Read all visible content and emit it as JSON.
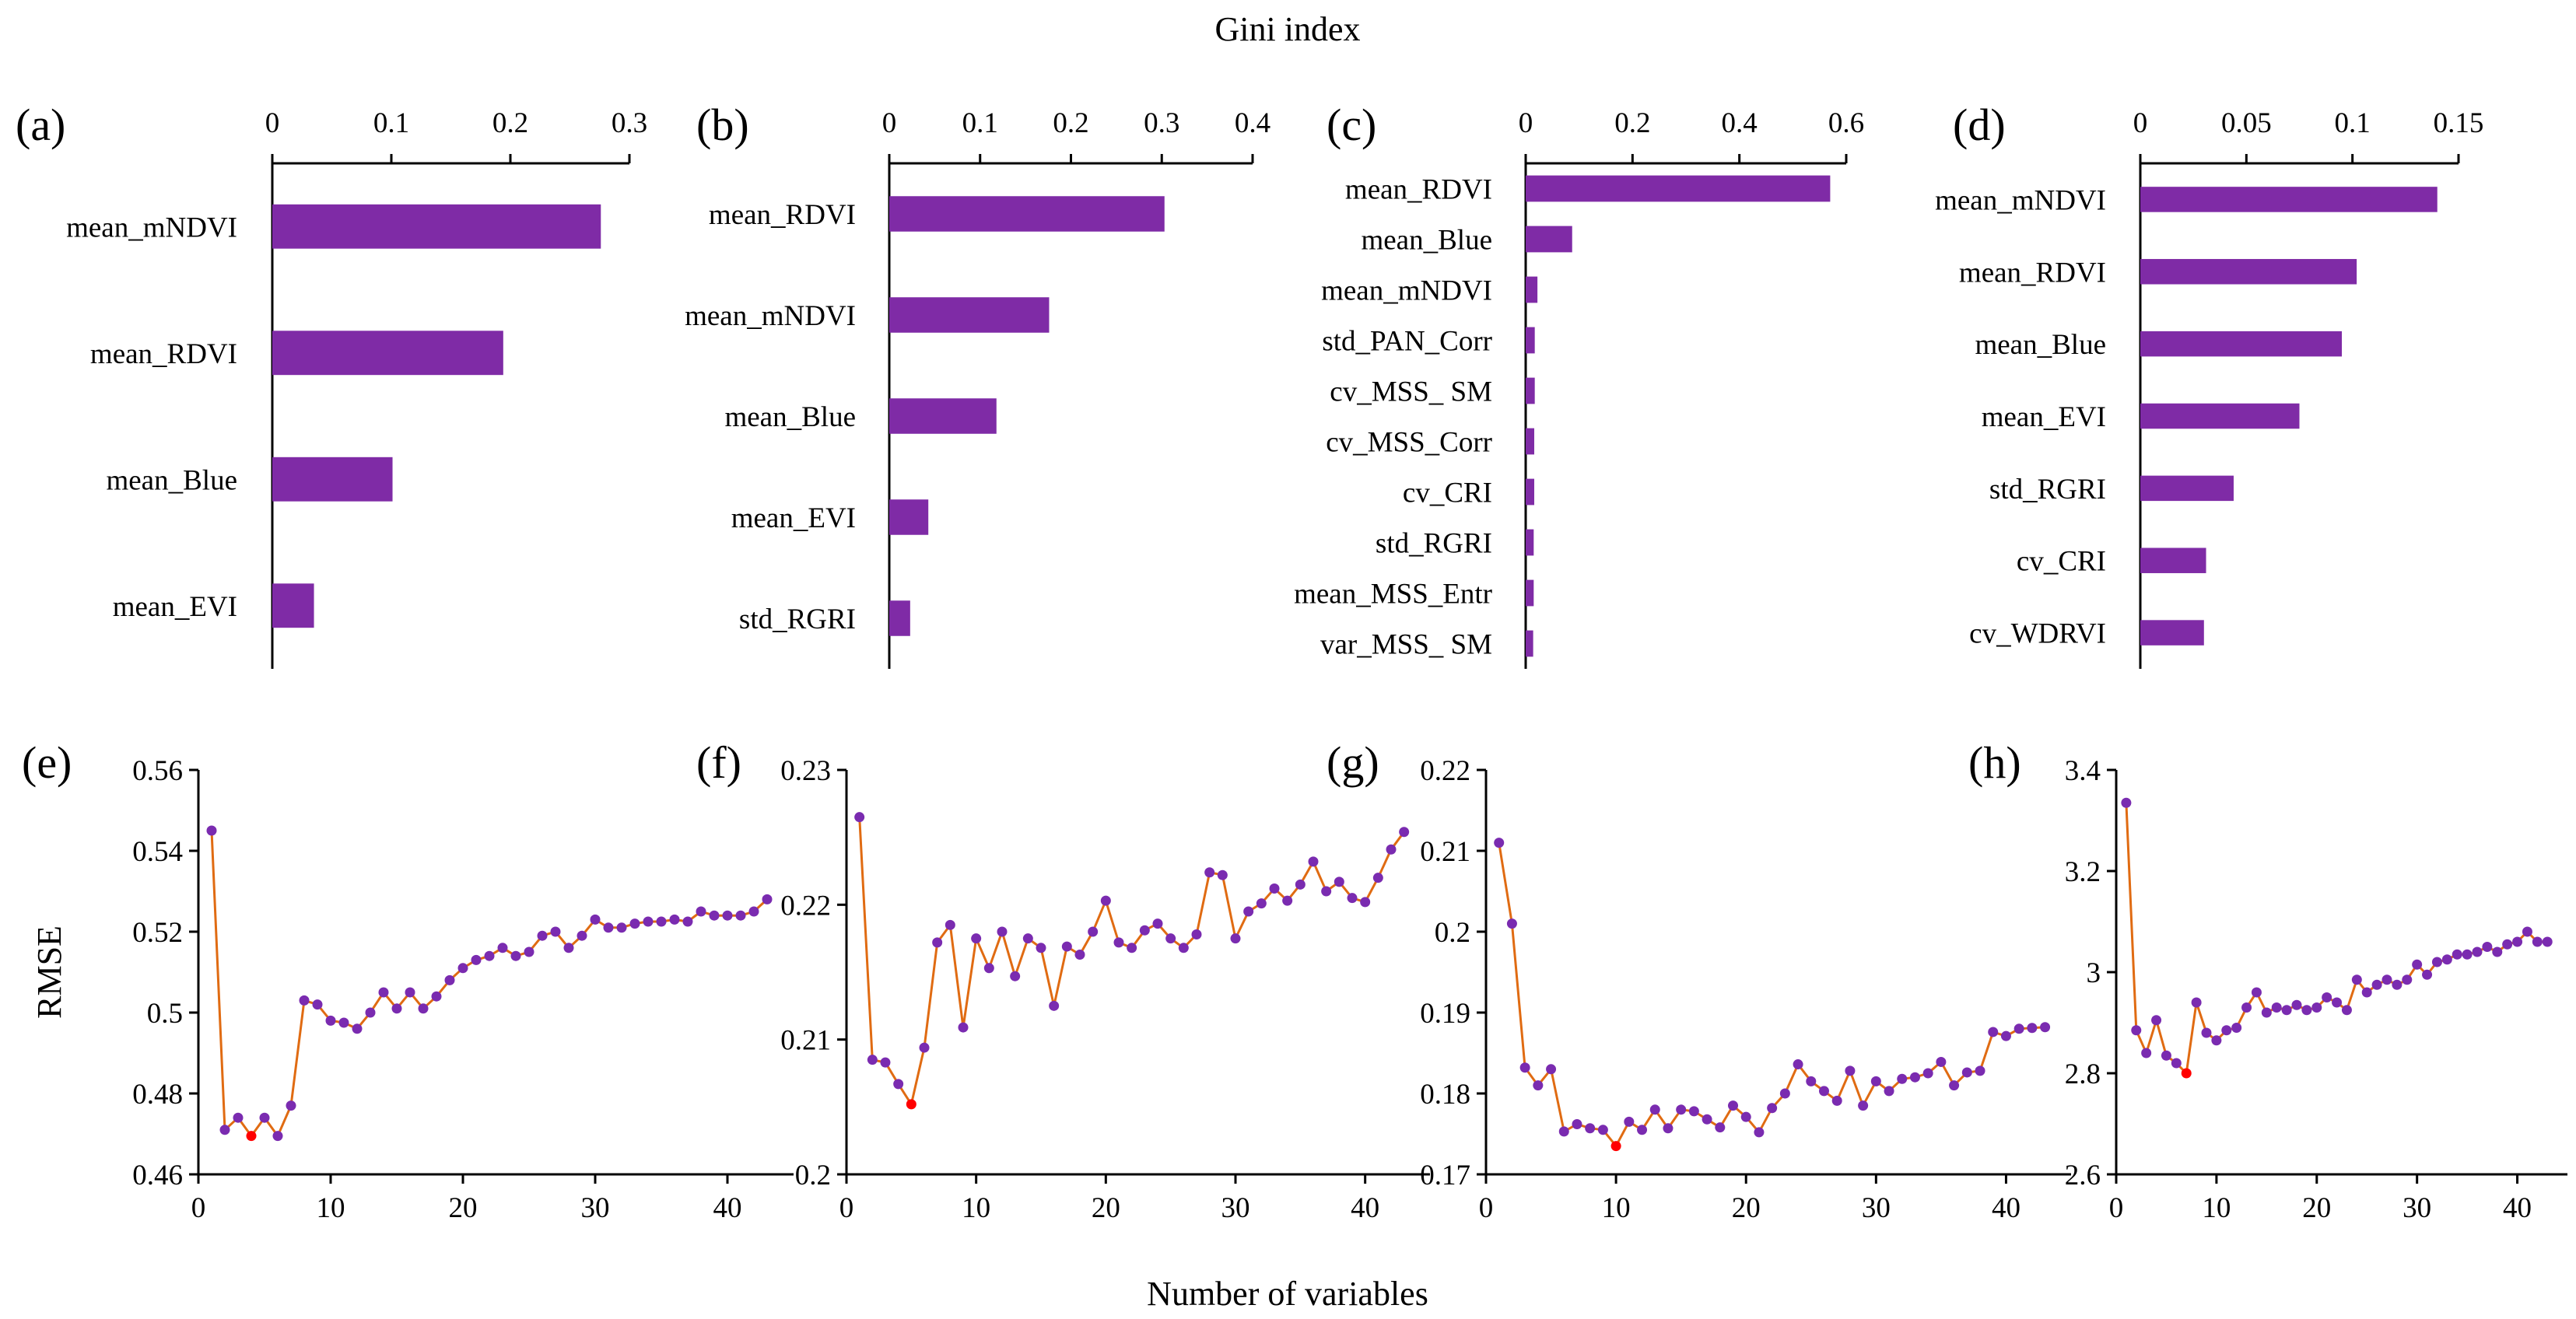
{
  "figure": {
    "top_label": "Gini index",
    "bottom_label": "Number of variables",
    "left_label": "RMSE"
  },
  "colors": {
    "bar": "#7f2ba6",
    "line": "#e06b12",
    "marker": "#7a2bb0",
    "min_marker": "#ff0000",
    "axis": "#000000"
  },
  "chart_data": [
    {
      "panel": "(a)",
      "type": "bar",
      "orientation": "horizontal",
      "categories": [
        "mean_mNDVI",
        "mean_RDVI",
        "mean_Blue",
        "mean_EVI"
      ],
      "values": [
        0.276,
        0.194,
        0.101,
        0.035
      ],
      "xlim": [
        0,
        0.3
      ],
      "ticks": [
        {
          "v": 0,
          "l": "0"
        },
        {
          "v": 0.1,
          "l": "0.1"
        },
        {
          "v": 0.2,
          "l": "0.2"
        },
        {
          "v": 0.3,
          "l": "0.3"
        }
      ]
    },
    {
      "panel": "(b)",
      "type": "bar",
      "orientation": "horizontal",
      "categories": [
        "mean_RDVI",
        "mean_mNDVI",
        "mean_Blue",
        "mean_EVI",
        "std_RGRI"
      ],
      "values": [
        0.303,
        0.176,
        0.118,
        0.043,
        0.023
      ],
      "xlim": [
        0,
        0.4
      ],
      "ticks": [
        {
          "v": 0,
          "l": "0"
        },
        {
          "v": 0.1,
          "l": "0.1"
        },
        {
          "v": 0.2,
          "l": "0.2"
        },
        {
          "v": 0.3,
          "l": "0.3"
        },
        {
          "v": 0.4,
          "l": "0.4"
        }
      ]
    },
    {
      "panel": "(c)",
      "type": "bar",
      "orientation": "horizontal",
      "categories": [
        "mean_RDVI",
        "mean_Blue",
        "mean_mNDVI",
        "std_PAN_Corr",
        "cv_MSS_ SM",
        "cv_MSS_Corr",
        "cv_CRI",
        "std_RGRI",
        "mean_MSS_Entr",
        "var_MSS_ SM"
      ],
      "values": [
        0.57,
        0.087,
        0.022,
        0.017,
        0.017,
        0.016,
        0.016,
        0.015,
        0.015,
        0.014
      ],
      "xlim": [
        0,
        0.6
      ],
      "ticks": [
        {
          "v": 0,
          "l": "0"
        },
        {
          "v": 0.2,
          "l": "0.2"
        },
        {
          "v": 0.4,
          "l": "0.4"
        },
        {
          "v": 0.6,
          "l": "0.6"
        }
      ]
    },
    {
      "panel": "(d)",
      "type": "bar",
      "orientation": "horizontal",
      "categories": [
        "mean_mNDVI",
        "mean_RDVI",
        "mean_Blue",
        "mean_EVI",
        "std_RGRI",
        "cv_CRI",
        "cv_WDRVI"
      ],
      "values": [
        0.14,
        0.102,
        0.095,
        0.075,
        0.044,
        0.031,
        0.03
      ],
      "xlim": [
        0,
        0.15
      ],
      "ticks": [
        {
          "v": 0,
          "l": "0"
        },
        {
          "v": 0.05,
          "l": "0.05"
        },
        {
          "v": 0.1,
          "l": "0.1"
        },
        {
          "v": 0.15,
          "l": "0.15"
        }
      ]
    },
    {
      "panel": "(e)",
      "type": "line",
      "x_start": 1,
      "values": [
        0.545,
        0.471,
        0.474,
        0.4695,
        0.474,
        0.4695,
        0.477,
        0.503,
        0.502,
        0.498,
        0.4975,
        0.496,
        0.5,
        0.505,
        0.501,
        0.505,
        0.501,
        0.504,
        0.508,
        0.511,
        0.513,
        0.514,
        0.516,
        0.514,
        0.515,
        0.519,
        0.52,
        0.516,
        0.519,
        0.523,
        0.521,
        0.521,
        0.522,
        0.5225,
        0.5225,
        0.523,
        0.5225,
        0.525,
        0.524,
        0.524,
        0.524,
        0.525,
        0.528
      ],
      "min_index": 4,
      "xlim": [
        0,
        45
      ],
      "ylim": [
        0.46,
        0.56
      ],
      "xticks": [
        {
          "v": 0,
          "l": "0"
        },
        {
          "v": 10,
          "l": "10"
        },
        {
          "v": 20,
          "l": "20"
        },
        {
          "v": 30,
          "l": "30"
        },
        {
          "v": 40,
          "l": "40"
        }
      ],
      "yticks": [
        {
          "v": 0.46,
          "l": "0.46"
        },
        {
          "v": 0.48,
          "l": "0.48"
        },
        {
          "v": 0.5,
          "l": "0.5"
        },
        {
          "v": 0.52,
          "l": "0.52"
        },
        {
          "v": 0.54,
          "l": "0.54"
        },
        {
          "v": 0.56,
          "l": "0.56"
        }
      ]
    },
    {
      "panel": "(f)",
      "type": "line",
      "x_start": 1,
      "values": [
        0.2265,
        0.2085,
        0.2083,
        0.2067,
        0.2052,
        0.2094,
        0.2172,
        0.2185,
        0.2109,
        0.2175,
        0.2153,
        0.218,
        0.2147,
        0.2175,
        0.2168,
        0.2125,
        0.2169,
        0.2163,
        0.218,
        0.2203,
        0.2172,
        0.2168,
        0.2181,
        0.2186,
        0.2175,
        0.2168,
        0.2178,
        0.2224,
        0.2222,
        0.2175,
        0.2195,
        0.2201,
        0.2212,
        0.2203,
        0.2215,
        0.2232,
        0.221,
        0.2217,
        0.2205,
        0.2202,
        0.222,
        0.2241,
        0.2254
      ],
      "min_index": 5,
      "xlim": [
        0,
        45
      ],
      "ylim": [
        0.2,
        0.23
      ],
      "xticks": [
        {
          "v": 0,
          "l": "0"
        },
        {
          "v": 10,
          "l": "10"
        },
        {
          "v": 20,
          "l": "20"
        },
        {
          "v": 30,
          "l": "30"
        },
        {
          "v": 40,
          "l": "40"
        }
      ],
      "yticks": [
        {
          "v": 0.2,
          "l": "0.2"
        },
        {
          "v": 0.21,
          "l": "0.21"
        },
        {
          "v": 0.22,
          "l": "0.22"
        },
        {
          "v": 0.23,
          "l": "0.23"
        }
      ]
    },
    {
      "panel": "(g)",
      "type": "line",
      "x_start": 1,
      "values": [
        0.211,
        0.201,
        0.1832,
        0.181,
        0.183,
        0.1753,
        0.1762,
        0.1757,
        0.1755,
        0.1735,
        0.1765,
        0.1755,
        0.178,
        0.1757,
        0.178,
        0.1778,
        0.1768,
        0.1758,
        0.1785,
        0.1771,
        0.1752,
        0.1782,
        0.18,
        0.1836,
        0.1815,
        0.1803,
        0.1791,
        0.1828,
        0.1785,
        0.1815,
        0.1803,
        0.1818,
        0.182,
        0.1825,
        0.1839,
        0.181,
        0.1826,
        0.1828,
        0.1876,
        0.1871,
        0.188,
        0.1881,
        0.1882
      ],
      "min_index": 10,
      "xlim": [
        0,
        45
      ],
      "ylim": [
        0.17,
        0.22
      ],
      "xticks": [
        {
          "v": 0,
          "l": "0"
        },
        {
          "v": 10,
          "l": "10"
        },
        {
          "v": 20,
          "l": "20"
        },
        {
          "v": 30,
          "l": "30"
        },
        {
          "v": 40,
          "l": "40"
        }
      ],
      "yticks": [
        {
          "v": 0.17,
          "l": "0.17"
        },
        {
          "v": 0.18,
          "l": "0.18"
        },
        {
          "v": 0.19,
          "l": "0.19"
        },
        {
          "v": 0.2,
          "l": "0.2"
        },
        {
          "v": 0.21,
          "l": "0.21"
        },
        {
          "v": 0.22,
          "l": "0.22"
        }
      ]
    },
    {
      "panel": "(h)",
      "type": "line",
      "x_start": 1,
      "values": [
        3.335,
        2.885,
        2.84,
        2.905,
        2.835,
        2.82,
        2.8,
        2.94,
        2.88,
        2.865,
        2.885,
        2.89,
        2.93,
        2.96,
        2.92,
        2.93,
        2.925,
        2.935,
        2.925,
        2.93,
        2.95,
        2.94,
        2.925,
        2.985,
        2.96,
        2.975,
        2.985,
        2.975,
        2.985,
        3.015,
        2.995,
        3.02,
        3.025,
        3.035,
        3.035,
        3.04,
        3.05,
        3.04,
        3.055,
        3.06,
        3.08,
        3.06,
        3.06
      ],
      "min_index": 7,
      "xlim": [
        0,
        45
      ],
      "ylim": [
        2.6,
        3.4
      ],
      "xticks": [
        {
          "v": 0,
          "l": "0"
        },
        {
          "v": 10,
          "l": "10"
        },
        {
          "v": 20,
          "l": "20"
        },
        {
          "v": 30,
          "l": "30"
        },
        {
          "v": 40,
          "l": "40"
        }
      ],
      "yticks": [
        {
          "v": 2.6,
          "l": "2.6"
        },
        {
          "v": 2.8,
          "l": "2.8"
        },
        {
          "v": 3,
          "l": "3"
        },
        {
          "v": 3.2,
          "l": "3.2"
        },
        {
          "v": 3.4,
          "l": "3.4"
        }
      ]
    }
  ]
}
